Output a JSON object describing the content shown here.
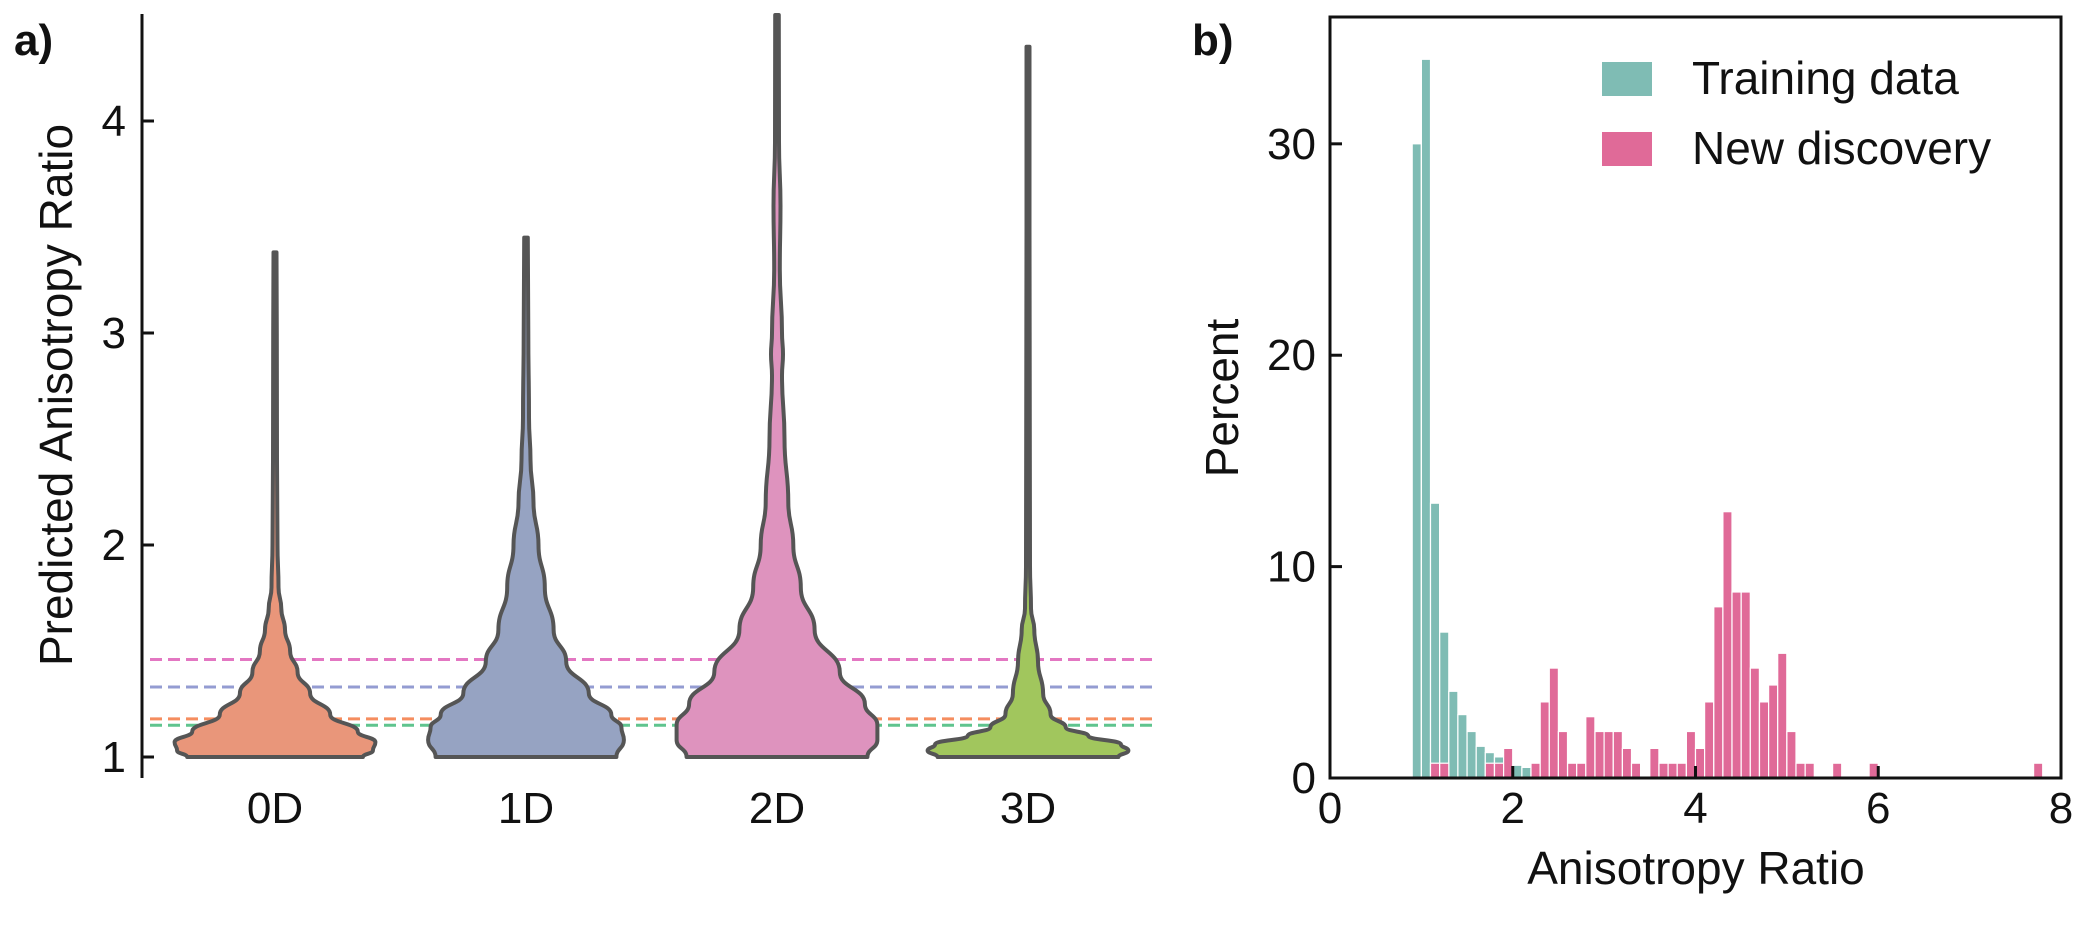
{
  "colors": {
    "0D": "#E9967A",
    "1D": "#96A3C2",
    "2D": "#DE93BE",
    "3D": "#A1C65D",
    "violin_edge": "#555555",
    "line_0D": "#F58D5F",
    "line_1D": "#949CD2",
    "line_2D": "#E377C2",
    "line_3D": "#5FC48E",
    "training": "#7FBCB4",
    "discovery": "#E06A98"
  },
  "chart_data": [
    {
      "type": "violin",
      "panel_label": "a)",
      "title": "",
      "xlabel": "",
      "ylabel": "Predicted Anisotropy Ratio",
      "ylim": [
        0.95,
        4.5
      ],
      "yticks": [
        "1",
        "2",
        "3",
        "4"
      ],
      "categories": [
        "0D",
        "1D",
        "2D",
        "3D"
      ],
      "violins": [
        {
          "category": "0D",
          "max": 3.38,
          "max_width": 0.4,
          "profile": [
            [
              1.0,
              0.35
            ],
            [
              1.03,
              0.39
            ],
            [
              1.07,
              0.4
            ],
            [
              1.12,
              0.33
            ],
            [
              1.2,
              0.22
            ],
            [
              1.3,
              0.14
            ],
            [
              1.4,
              0.09
            ],
            [
              1.5,
              0.06
            ],
            [
              1.6,
              0.04
            ],
            [
              1.7,
              0.025
            ],
            [
              1.8,
              0.014
            ],
            [
              2.0,
              0.01
            ],
            [
              2.4,
              0.008
            ],
            [
              3.0,
              0.007
            ],
            [
              3.38,
              0.006
            ]
          ]
        },
        {
          "category": "1D",
          "max": 3.45,
          "max_width": 0.39,
          "profile": [
            [
              1.0,
              0.36
            ],
            [
              1.08,
              0.39
            ],
            [
              1.14,
              0.38
            ],
            [
              1.2,
              0.34
            ],
            [
              1.3,
              0.25
            ],
            [
              1.45,
              0.16
            ],
            [
              1.6,
              0.11
            ],
            [
              1.8,
              0.075
            ],
            [
              2.0,
              0.05
            ],
            [
              2.2,
              0.03
            ],
            [
              2.4,
              0.018
            ],
            [
              2.6,
              0.012
            ],
            [
              3.0,
              0.009
            ],
            [
              3.45,
              0.007
            ]
          ]
        },
        {
          "category": "2D",
          "max": 4.5,
          "max_width": 0.4,
          "profile": [
            [
              1.0,
              0.36
            ],
            [
              1.08,
              0.4
            ],
            [
              1.15,
              0.4
            ],
            [
              1.25,
              0.35
            ],
            [
              1.4,
              0.25
            ],
            [
              1.6,
              0.15
            ],
            [
              1.8,
              0.095
            ],
            [
              2.0,
              0.065
            ],
            [
              2.2,
              0.045
            ],
            [
              2.5,
              0.03
            ],
            [
              2.8,
              0.02
            ],
            [
              2.9,
              0.024
            ],
            [
              3.0,
              0.02
            ],
            [
              3.3,
              0.011
            ],
            [
              3.6,
              0.014
            ],
            [
              3.9,
              0.008
            ],
            [
              4.5,
              0.007
            ]
          ]
        },
        {
          "category": "3D",
          "max": 4.35,
          "max_width": 0.4,
          "profile": [
            [
              1.0,
              0.36
            ],
            [
              1.03,
              0.4
            ],
            [
              1.06,
              0.37
            ],
            [
              1.1,
              0.24
            ],
            [
              1.14,
              0.15
            ],
            [
              1.2,
              0.09
            ],
            [
              1.3,
              0.06
            ],
            [
              1.45,
              0.04
            ],
            [
              1.6,
              0.025
            ],
            [
              1.7,
              0.012
            ],
            [
              1.9,
              0.008
            ],
            [
              2.5,
              0.007
            ],
            [
              3.5,
              0.006
            ],
            [
              4.35,
              0.006
            ]
          ]
        }
      ],
      "reference_lines": [
        {
          "category": "2D",
          "y": 1.46
        },
        {
          "category": "1D",
          "y": 1.33
        },
        {
          "category": "0D",
          "y": 1.18
        },
        {
          "category": "3D",
          "y": 1.15
        }
      ]
    },
    {
      "type": "bar",
      "panel_label": "b)",
      "title": "",
      "xlabel": "Anisotropy Ratio",
      "ylabel": "Percent",
      "xlim": [
        0,
        8
      ],
      "ylim": [
        0,
        36
      ],
      "xticks": [
        "0",
        "2",
        "4",
        "6",
        "8"
      ],
      "yticks": [
        "0",
        "10",
        "20",
        "30"
      ],
      "legend_position": "top-right",
      "bin_width": 0.1,
      "series": [
        {
          "name": "Training data",
          "color_key": "training",
          "bins": [
            [
              0.95,
              30.0
            ],
            [
              1.05,
              34.0
            ],
            [
              1.15,
              13.0
            ],
            [
              1.25,
              6.9
            ],
            [
              1.35,
              4.1
            ],
            [
              1.45,
              3.0
            ],
            [
              1.55,
              2.2
            ],
            [
              1.65,
              1.5
            ],
            [
              1.75,
              1.2
            ],
            [
              1.85,
              1.0
            ],
            [
              1.95,
              0.8
            ],
            [
              2.05,
              0.6
            ],
            [
              2.15,
              0.5
            ],
            [
              2.25,
              0.4
            ],
            [
              2.35,
              0.3
            ],
            [
              2.55,
              0.3
            ],
            [
              2.65,
              0.2
            ],
            [
              2.75,
              0.2
            ],
            [
              2.95,
              0.1
            ]
          ]
        },
        {
          "name": "New discovery",
          "color_key": "discovery",
          "bins": [
            [
              1.15,
              0.7
            ],
            [
              1.25,
              0.7
            ],
            [
              1.75,
              0.7
            ],
            [
              1.85,
              0.7
            ],
            [
              1.95,
              1.4
            ],
            [
              2.25,
              0.7
            ],
            [
              2.35,
              3.6
            ],
            [
              2.45,
              5.2
            ],
            [
              2.55,
              2.2
            ],
            [
              2.65,
              0.7
            ],
            [
              2.75,
              0.7
            ],
            [
              2.85,
              2.9
            ],
            [
              2.95,
              2.2
            ],
            [
              3.05,
              2.2
            ],
            [
              3.15,
              2.2
            ],
            [
              3.25,
              1.4
            ],
            [
              3.35,
              0.7
            ],
            [
              3.55,
              1.4
            ],
            [
              3.65,
              0.7
            ],
            [
              3.75,
              0.7
            ],
            [
              3.85,
              0.7
            ],
            [
              3.95,
              2.2
            ],
            [
              4.05,
              1.4
            ],
            [
              4.15,
              3.6
            ],
            [
              4.25,
              8.1
            ],
            [
              4.35,
              12.6
            ],
            [
              4.45,
              8.8
            ],
            [
              4.55,
              8.8
            ],
            [
              4.65,
              5.2
            ],
            [
              4.75,
              3.6
            ],
            [
              4.85,
              4.4
            ],
            [
              4.95,
              5.9
            ],
            [
              5.05,
              2.2
            ],
            [
              5.15,
              0.7
            ],
            [
              5.25,
              0.7
            ],
            [
              5.55,
              0.7
            ],
            [
              5.95,
              0.7
            ],
            [
              7.75,
              0.7
            ]
          ]
        }
      ]
    }
  ]
}
